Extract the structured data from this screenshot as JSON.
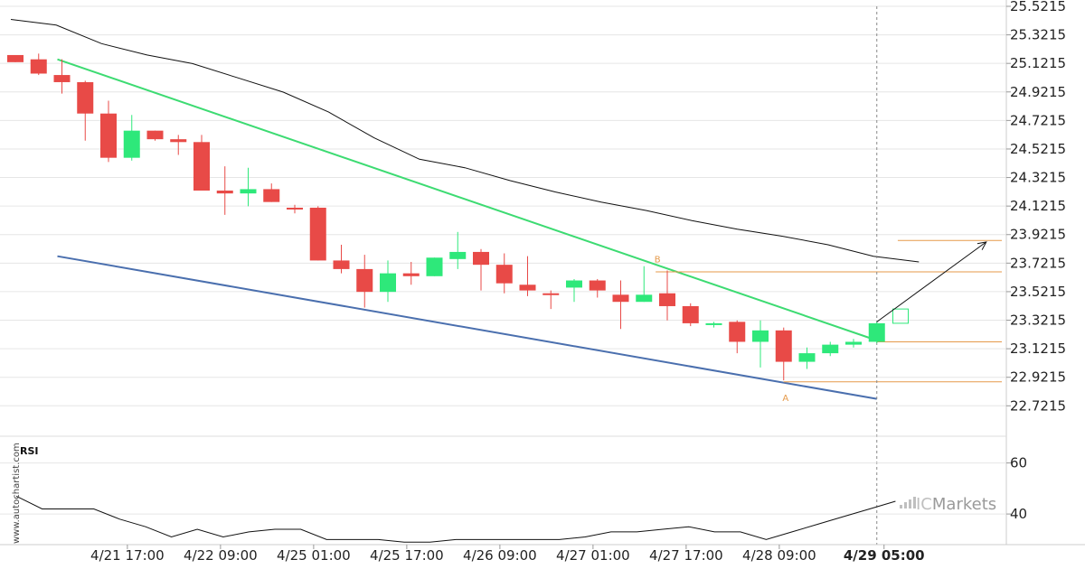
{
  "colors": {
    "bull": "#2ee87a",
    "bear": "#e84a47",
    "resistance": "#3ddb72",
    "support": "#4a6fae",
    "level": "#e59a4a",
    "band": "#111111",
    "rsi": "#111111",
    "grid": "#e6e6e6"
  },
  "watermark": "www.autochartist.com",
  "brand": {
    "prefix": "IC",
    "name": "Markets"
  },
  "rsi_label": "RSI",
  "chart_data": [
    {
      "type": "candlestick",
      "title": "",
      "ylim": [
        22.5715,
        25.5215
      ],
      "yticks": [
        "25.5215",
        "25.3215",
        "25.1215",
        "24.9215",
        "24.7215",
        "24.5215",
        "24.3215",
        "24.1215",
        "23.9215",
        "23.7215",
        "23.5215",
        "23.3215",
        "23.1215",
        "22.9215",
        "22.7215"
      ],
      "xticks": [
        {
          "label": "4/21 17:00",
          "index": 4.5,
          "bold": false
        },
        {
          "label": "4/22 09:00",
          "index": 8.5,
          "bold": false
        },
        {
          "label": "4/25 01:00",
          "index": 12.5,
          "bold": false
        },
        {
          "label": "4/25 17:00",
          "index": 16.5,
          "bold": false
        },
        {
          "label": "4/26 09:00",
          "index": 20.5,
          "bold": false
        },
        {
          "label": "4/27 01:00",
          "index": 24.5,
          "bold": false
        },
        {
          "label": "4/27 17:00",
          "index": 28.5,
          "bold": false
        },
        {
          "label": "4/28 09:00",
          "index": 32.5,
          "bold": false
        },
        {
          "label": "4/29 05:00",
          "index": 37,
          "bold": true
        }
      ],
      "candles": [
        {
          "o": 25.18,
          "h": 25.18,
          "l": 25.13,
          "c": 25.13
        },
        {
          "o": 25.15,
          "h": 25.19,
          "l": 25.04,
          "c": 25.05
        },
        {
          "o": 25.04,
          "h": 25.15,
          "l": 24.91,
          "c": 24.99
        },
        {
          "o": 24.99,
          "h": 25.0,
          "l": 24.58,
          "c": 24.77
        },
        {
          "o": 24.77,
          "h": 24.86,
          "l": 24.43,
          "c": 24.46
        },
        {
          "o": 24.46,
          "h": 24.76,
          "l": 24.44,
          "c": 24.65
        },
        {
          "o": 24.65,
          "h": 24.65,
          "l": 24.58,
          "c": 24.59
        },
        {
          "o": 24.59,
          "h": 24.62,
          "l": 24.48,
          "c": 24.57
        },
        {
          "o": 24.57,
          "h": 24.62,
          "l": 24.23,
          "c": 24.23
        },
        {
          "o": 24.23,
          "h": 24.4,
          "l": 24.06,
          "c": 24.21
        },
        {
          "o": 24.21,
          "h": 24.39,
          "l": 24.12,
          "c": 24.24
        },
        {
          "o": 24.24,
          "h": 24.28,
          "l": 24.15,
          "c": 24.15
        },
        {
          "o": 24.11,
          "h": 24.13,
          "l": 24.07,
          "c": 24.1
        },
        {
          "o": 24.11,
          "h": 24.12,
          "l": 23.74,
          "c": 23.74
        },
        {
          "o": 23.74,
          "h": 23.85,
          "l": 23.65,
          "c": 23.68
        },
        {
          "o": 23.68,
          "h": 23.78,
          "l": 23.41,
          "c": 23.52
        },
        {
          "o": 23.52,
          "h": 23.74,
          "l": 23.45,
          "c": 23.65
        },
        {
          "o": 23.65,
          "h": 23.73,
          "l": 23.57,
          "c": 23.63
        },
        {
          "o": 23.63,
          "h": 23.76,
          "l": 23.63,
          "c": 23.76
        },
        {
          "o": 23.75,
          "h": 23.94,
          "l": 23.68,
          "c": 23.8
        },
        {
          "o": 23.8,
          "h": 23.82,
          "l": 23.53,
          "c": 23.71
        },
        {
          "o": 23.71,
          "h": 23.79,
          "l": 23.51,
          "c": 23.58
        },
        {
          "o": 23.57,
          "h": 23.77,
          "l": 23.49,
          "c": 23.53
        },
        {
          "o": 23.51,
          "h": 23.53,
          "l": 23.4,
          "c": 23.5
        },
        {
          "o": 23.55,
          "h": 23.61,
          "l": 23.45,
          "c": 23.6
        },
        {
          "o": 23.6,
          "h": 23.61,
          "l": 23.48,
          "c": 23.53
        },
        {
          "o": 23.5,
          "h": 23.6,
          "l": 23.26,
          "c": 23.45
        },
        {
          "o": 23.45,
          "h": 23.7,
          "l": 23.45,
          "c": 23.5
        },
        {
          "o": 23.51,
          "h": 23.67,
          "l": 23.32,
          "c": 23.42
        },
        {
          "o": 23.42,
          "h": 23.44,
          "l": 23.28,
          "c": 23.3
        },
        {
          "o": 23.3,
          "h": 23.31,
          "l": 23.27,
          "c": 23.3
        },
        {
          "o": 23.31,
          "h": 23.32,
          "l": 23.09,
          "c": 23.17
        },
        {
          "o": 23.17,
          "h": 23.32,
          "l": 22.99,
          "c": 23.25
        },
        {
          "o": 23.25,
          "h": 23.27,
          "l": 22.9,
          "c": 23.03
        },
        {
          "o": 23.03,
          "h": 23.13,
          "l": 22.98,
          "c": 23.09
        },
        {
          "o": 23.09,
          "h": 23.17,
          "l": 23.07,
          "c": 23.15
        },
        {
          "o": 23.15,
          "h": 23.19,
          "l": 23.13,
          "c": 23.17
        },
        {
          "o": 23.17,
          "h": 23.31,
          "l": 23.16,
          "c": 23.3
        }
      ],
      "next_candle": {
        "index": 38,
        "low": 23.3,
        "high": 23.4
      },
      "band": [
        25.43,
        25.39,
        25.26,
        25.18,
        25.12,
        25.02,
        24.92,
        24.78,
        24.6,
        24.45,
        24.39,
        24.3,
        24.22,
        24.15,
        24.09,
        24.02,
        23.96,
        23.91,
        23.85,
        23.77,
        23.73
      ],
      "band_start_index": 0,
      "band_step": 1.95,
      "resistance": {
        "from": {
          "index": 2,
          "value": 25.15
        },
        "to": {
          "index": 37,
          "value": 23.18
        }
      },
      "support": {
        "from": {
          "index": 2,
          "value": 23.77
        },
        "to": {
          "index": 37,
          "value": 22.77
        }
      },
      "levels": [
        {
          "value": 23.88,
          "from_index": 37.9
        },
        {
          "value": 23.66,
          "from_index": 27.5
        },
        {
          "value": 23.17,
          "from_index": 37.0
        },
        {
          "value": 22.89,
          "from_index": 33.0
        }
      ],
      "points": [
        {
          "label": "B",
          "index": 27.5,
          "value": 23.7
        },
        {
          "label": "A",
          "index": 33.0,
          "value": 22.83
        }
      ],
      "projection": {
        "from": {
          "index": 37,
          "value": 23.31
        },
        "to": {
          "index": 41.7,
          "value": 23.87
        }
      },
      "current_index": 37
    },
    {
      "type": "line",
      "title": "RSI",
      "ylim": [
        28,
        68
      ],
      "yticks": [
        "60",
        "40"
      ],
      "values": [
        47,
        42,
        42,
        42,
        38,
        35,
        31,
        34,
        31,
        33,
        34,
        34,
        30,
        30,
        30,
        29,
        29,
        30,
        30,
        30,
        30,
        30,
        31,
        33,
        33,
        34,
        35,
        33,
        33,
        30,
        33,
        36,
        39,
        42,
        45
      ],
      "x_start": 18,
      "x_step": 28.6
    }
  ]
}
